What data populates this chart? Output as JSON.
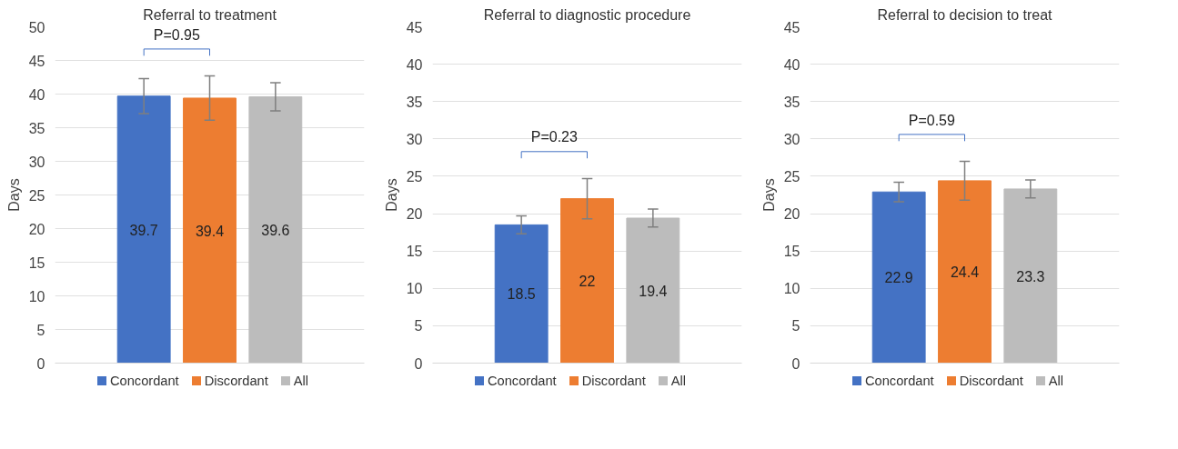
{
  "chart_data": [
    {
      "type": "bar",
      "title": "Referral to treatment",
      "ylabel": "Days",
      "categories": [
        null
      ],
      "series": [
        {
          "name": "Concordant",
          "color": "#4472c4",
          "values": [
            39.7
          ],
          "errors": [
            2.6
          ]
        },
        {
          "name": "Discordant",
          "color": "#ed7d31",
          "values": [
            39.4
          ],
          "errors": [
            3.3
          ]
        },
        {
          "name": "All",
          "color": "#bcbcbc",
          "values": [
            39.6
          ],
          "errors": [
            2.1
          ]
        }
      ],
      "ylim": [
        0,
        50
      ],
      "yticks": [
        0,
        5,
        10,
        15,
        20,
        25,
        30,
        35,
        40,
        45,
        50
      ],
      "grid": "y",
      "legend": "bottom",
      "data_labels": true,
      "annotations": [
        "P=0.95"
      ]
    },
    {
      "type": "bar",
      "title": "Referral to diagnostic procedure",
      "ylabel": "Days",
      "categories": [
        null
      ],
      "series": [
        {
          "name": "Concordant",
          "color": "#4472c4",
          "values": [
            18.5
          ],
          "errors": [
            1.2
          ]
        },
        {
          "name": "Discordant",
          "color": "#ed7d31",
          "values": [
            22
          ],
          "errors": [
            2.7
          ]
        },
        {
          "name": "All",
          "color": "#bcbcbc",
          "values": [
            19.4
          ],
          "errors": [
            1.2
          ]
        }
      ],
      "ylim": [
        0,
        45
      ],
      "yticks": [
        0,
        5,
        10,
        15,
        20,
        25,
        30,
        35,
        40,
        45
      ],
      "grid": "y",
      "legend": "bottom",
      "data_labels": true,
      "annotations": [
        "P=0.23"
      ]
    },
    {
      "type": "bar",
      "title": "Referral to decision to treat",
      "ylabel": "Days",
      "categories": [
        null
      ],
      "series": [
        {
          "name": "Concordant",
          "color": "#4472c4",
          "values": [
            22.9
          ],
          "errors": [
            1.3
          ]
        },
        {
          "name": "Discordant",
          "color": "#ed7d31",
          "values": [
            24.4
          ],
          "errors": [
            2.6
          ]
        },
        {
          "name": "All",
          "color": "#bcbcbc",
          "values": [
            23.3
          ],
          "errors": [
            1.2
          ]
        }
      ],
      "ylim": [
        0,
        45
      ],
      "yticks": [
        0,
        5,
        10,
        15,
        20,
        25,
        30,
        35,
        40,
        45
      ],
      "grid": "y",
      "legend": "bottom",
      "data_labels": true,
      "annotations": [
        "P=0.59"
      ]
    }
  ]
}
